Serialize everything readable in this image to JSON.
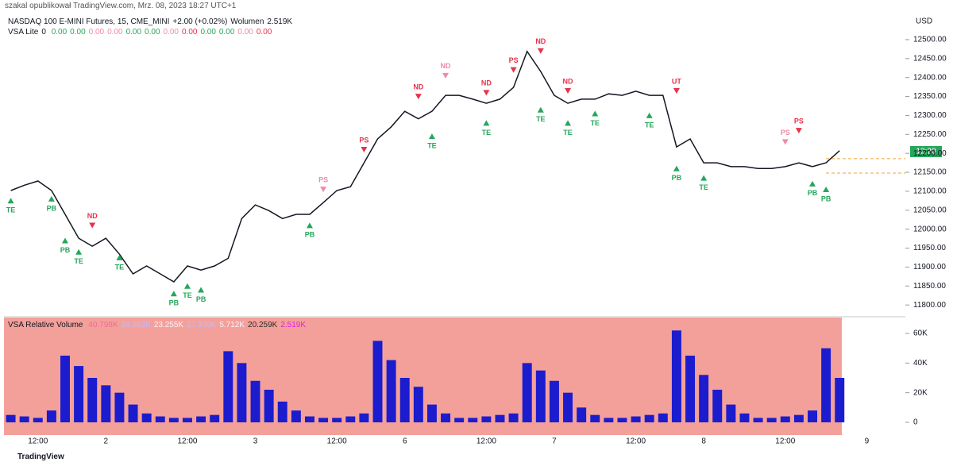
{
  "header": {
    "author": "szakal opublikował TradingView.com, Mrz. 08, 2023 18:27 UTC+1",
    "symbol": "NASDAQ 100 E-MINI Futures, 15, CME_MINI",
    "change": "+2.00 (+0.02%)",
    "volume_label": "Wolumen",
    "volume_value": "2.519K",
    "indicator": "VSA Lite",
    "indicator_flag": "0",
    "indicator_values": [
      "0.00",
      "0.00",
      "0.00",
      "0.00",
      "0.00",
      "0.00",
      "0.00",
      "0.00",
      "0.00",
      "0.00",
      "0.00",
      "0.00"
    ],
    "indicator_colors": [
      "#26a65b",
      "#26a65b",
      "#f08aa8",
      "#f08aa8",
      "#26a65b",
      "#26a65b",
      "#f08aa8",
      "#e8324a",
      "#26a65b",
      "#26a65b",
      "#f08aa8",
      "#e8324a"
    ],
    "currency": "USD",
    "countdown": "12:20",
    "volume_indicator": "VSA Relative Volume",
    "volume_indicator_values": [
      "40.798K",
      "34.882K",
      "23.255K",
      "17.339K",
      "5.712K",
      "20.259K",
      "2.519K"
    ],
    "volume_indicator_colors": [
      "#f06b9a",
      "#c9b8f0",
      "#f8f0f8",
      "#c9b8f0",
      "#f8f0f8",
      "#2a2a2a",
      "#e020e0"
    ],
    "footer": "TradingView"
  },
  "chart_data": [
    {
      "type": "line",
      "color": "#131722",
      "ylim": [
        11771,
        12525
      ],
      "yticks": [
        {
          "value": 11800,
          "label": "11800.00"
        },
        {
          "value": 11850,
          "label": "11850.00"
        },
        {
          "value": 11900,
          "label": "11900.00"
        },
        {
          "value": 11950,
          "label": "11950.00"
        },
        {
          "value": 12000,
          "label": "12000.00"
        },
        {
          "value": 12050,
          "label": "12050.00"
        },
        {
          "value": 12100,
          "label": "12100.00"
        },
        {
          "value": 12150,
          "label": "12150.00"
        },
        {
          "value": 12200,
          "label": "12200.00"
        },
        {
          "value": 12250,
          "label": "12250.00"
        },
        {
          "value": 12300,
          "label": "12300.00"
        },
        {
          "value": 12350,
          "label": "12350.00"
        },
        {
          "value": 12400,
          "label": "12400.00"
        },
        {
          "value": 12450,
          "label": "12450.00"
        },
        {
          "value": 12500,
          "label": "12500.00"
        }
      ],
      "values": [
        12102,
        12116,
        12127,
        12102,
        12039,
        11976,
        11955,
        11976,
        11934,
        11882,
        11903,
        11882,
        11861,
        11903,
        11892,
        11903,
        11923,
        12028,
        12064,
        12049,
        12028,
        12039,
        12039,
        12070,
        12102,
        12112,
        12175,
        12238,
        12270,
        12311,
        12291,
        12311,
        12353,
        12353,
        12343,
        12332,
        12343,
        12374,
        12469,
        12416,
        12353,
        12332,
        12343,
        12343,
        12357,
        12353,
        12364,
        12353,
        12353,
        12217,
        12238,
        12175,
        12175,
        12165,
        12165,
        12160,
        12160,
        12165,
        12175,
        12165,
        12175,
        12207,
        null,
        null
      ],
      "levels": [
        12186,
        12148
      ],
      "level_color": "#f7a23b",
      "annotations": [
        {
          "text": "TE",
          "x": 0,
          "y": 12095,
          "dir": "up",
          "color": "#26a65b"
        },
        {
          "text": "PB",
          "x": 3,
          "y": 12100,
          "dir": "up",
          "color": "#26a65b"
        },
        {
          "text": "ND",
          "x": 6,
          "y": 11990,
          "dir": "down",
          "color": "#e8324a"
        },
        {
          "text": "PB",
          "x": 4,
          "y": 11990,
          "dir": "up",
          "color": "#26a65b"
        },
        {
          "text": "TE",
          "x": 5,
          "y": 11960,
          "dir": "up",
          "color": "#26a65b"
        },
        {
          "text": "TE",
          "x": 8,
          "y": 11945,
          "dir": "up",
          "color": "#26a65b"
        },
        {
          "text": "PB",
          "x": 12,
          "y": 11850,
          "dir": "up",
          "color": "#26a65b"
        },
        {
          "text": "TE",
          "x": 13,
          "y": 11870,
          "dir": "up",
          "color": "#26a65b"
        },
        {
          "text": "PB",
          "x": 14,
          "y": 11860,
          "dir": "up",
          "color": "#26a65b"
        },
        {
          "text": "PS",
          "x": 23,
          "y": 12085,
          "dir": "down",
          "color": "#f08aa8"
        },
        {
          "text": "PB",
          "x": 22,
          "y": 12030,
          "dir": "up",
          "color": "#26a65b"
        },
        {
          "text": "PS",
          "x": 26,
          "y": 12190,
          "dir": "down",
          "color": "#e8324a"
        },
        {
          "text": "ND",
          "x": 30,
          "y": 12330,
          "dir": "down",
          "color": "#e8324a"
        },
        {
          "text": "TE",
          "x": 31,
          "y": 12265,
          "dir": "up",
          "color": "#26a65b"
        },
        {
          "text": "ND",
          "x": 32,
          "y": 12385,
          "dir": "down",
          "color": "#f08aa8"
        },
        {
          "text": "ND",
          "x": 35,
          "y": 12340,
          "dir": "down",
          "color": "#e8324a"
        },
        {
          "text": "TE",
          "x": 35,
          "y": 12300,
          "dir": "up",
          "color": "#26a65b"
        },
        {
          "text": "PS",
          "x": 37,
          "y": 12400,
          "dir": "down",
          "color": "#e8324a"
        },
        {
          "text": "ND",
          "x": 39,
          "y": 12450,
          "dir": "down",
          "color": "#e8324a"
        },
        {
          "text": "TE",
          "x": 39,
          "y": 12335,
          "dir": "up",
          "color": "#26a65b"
        },
        {
          "text": "ND",
          "x": 41,
          "y": 12345,
          "dir": "down",
          "color": "#e8324a"
        },
        {
          "text": "TE",
          "x": 41,
          "y": 12300,
          "dir": "up",
          "color": "#26a65b"
        },
        {
          "text": "TE",
          "x": 43,
          "y": 12325,
          "dir": "up",
          "color": "#26a65b"
        },
        {
          "text": "TE",
          "x": 47,
          "y": 12320,
          "dir": "up",
          "color": "#26a65b"
        },
        {
          "text": "UT",
          "x": 49,
          "y": 12345,
          "dir": "down",
          "color": "#e8324a"
        },
        {
          "text": "PB",
          "x": 49,
          "y": 12180,
          "dir": "up",
          "color": "#26a65b"
        },
        {
          "text": "TE",
          "x": 51,
          "y": 12155,
          "dir": "up",
          "color": "#26a65b"
        },
        {
          "text": "PS",
          "x": 57,
          "y": 12210,
          "dir": "down",
          "color": "#f08aa8"
        },
        {
          "text": "PS",
          "x": 58,
          "y": 12240,
          "dir": "down",
          "color": "#e8324a"
        },
        {
          "text": "PB",
          "x": 59,
          "y": 12140,
          "dir": "up",
          "color": "#26a65b"
        },
        {
          "text": "PB",
          "x": 60,
          "y": 12125,
          "dir": "up",
          "color": "#26a65b"
        }
      ]
    },
    {
      "type": "bar",
      "color": "#1c1ccf",
      "background": "#f4a09a",
      "ylim": [
        -8571,
        70714
      ],
      "yticks": [
        0,
        {
          "value": 20000,
          "label": "20K"
        },
        {
          "value": 40000,
          "label": "40K"
        },
        {
          "value": 60000,
          "label": "60K"
        }
      ],
      "categories": [
        null,
        null,
        "12:00",
        null,
        null,
        null,
        null,
        "2",
        null,
        null,
        null,
        null,
        null,
        "12:00",
        null,
        null,
        null,
        null,
        "3",
        null,
        null,
        null,
        null,
        null,
        "12:00",
        null,
        null,
        null,
        null,
        "6",
        null,
        null,
        null,
        null,
        null,
        "12:00",
        null,
        null,
        null,
        null,
        "7",
        null,
        null,
        null,
        null,
        null,
        "12:00",
        null,
        null,
        null,
        null,
        "8",
        null,
        null,
        null,
        null,
        null,
        "12:00",
        null,
        null,
        null,
        null,
        null,
        "9"
      ],
      "values": [
        5000,
        4000,
        3000,
        8000,
        45000,
        38000,
        30000,
        25000,
        20000,
        12000,
        6000,
        4000,
        3000,
        3000,
        4000,
        5000,
        48000,
        40000,
        28000,
        22000,
        14000,
        8000,
        4000,
        3000,
        3000,
        4000,
        6000,
        55000,
        42000,
        30000,
        24000,
        12000,
        6000,
        3000,
        3000,
        4000,
        5000,
        6000,
        40000,
        35000,
        28000,
        20000,
        10000,
        5000,
        3000,
        3000,
        4000,
        5000,
        6000,
        62000,
        45000,
        32000,
        22000,
        12000,
        6000,
        3000,
        3000,
        4000,
        5000,
        8000,
        50000,
        30000,
        null,
        null
      ]
    }
  ]
}
